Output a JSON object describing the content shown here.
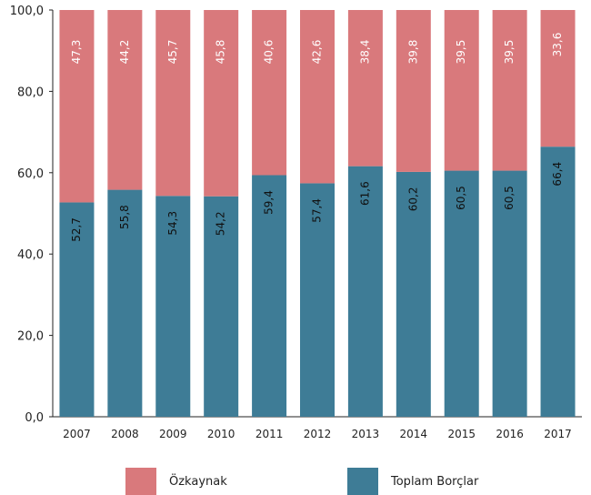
{
  "chart_data": {
    "type": "bar",
    "stacked": true,
    "categories": [
      "2007",
      "2008",
      "2009",
      "2010",
      "2011",
      "2012",
      "2013",
      "2014",
      "2015",
      "2016",
      "2017"
    ],
    "series": [
      {
        "name": "Toplam Borçlar",
        "values": [
          52.7,
          55.8,
          54.3,
          54.2,
          59.4,
          57.4,
          61.6,
          60.2,
          60.5,
          60.5,
          66.4
        ],
        "labels": [
          "52,7",
          "55,8",
          "54,3",
          "54,2",
          "59,4",
          "57,4",
          "61,6",
          "60,2",
          "60,5",
          "60,5",
          "66,4"
        ],
        "color": "#3e7c96"
      },
      {
        "name": "Özkaynak",
        "values": [
          47.3,
          44.2,
          45.7,
          45.8,
          40.6,
          42.6,
          38.4,
          39.8,
          39.5,
          39.5,
          33.6
        ],
        "labels": [
          "47,3",
          "44,2",
          "45,7",
          "45,8",
          "40,6",
          "42,6",
          "38,4",
          "39,8",
          "39,5",
          "39,5",
          "33,6"
        ],
        "color": "#d9797c"
      }
    ],
    "yticks": [
      "0,0",
      "20,0",
      "40,0",
      "60,0",
      "80,0",
      "100,0"
    ],
    "ylim": [
      0,
      100
    ],
    "legend_position": "bottom",
    "grid": false
  },
  "legend": {
    "items": [
      {
        "label": "Özkaynak",
        "color": "#d9797c"
      },
      {
        "label": "Toplam Borçlar",
        "color": "#3e7c96"
      }
    ]
  }
}
